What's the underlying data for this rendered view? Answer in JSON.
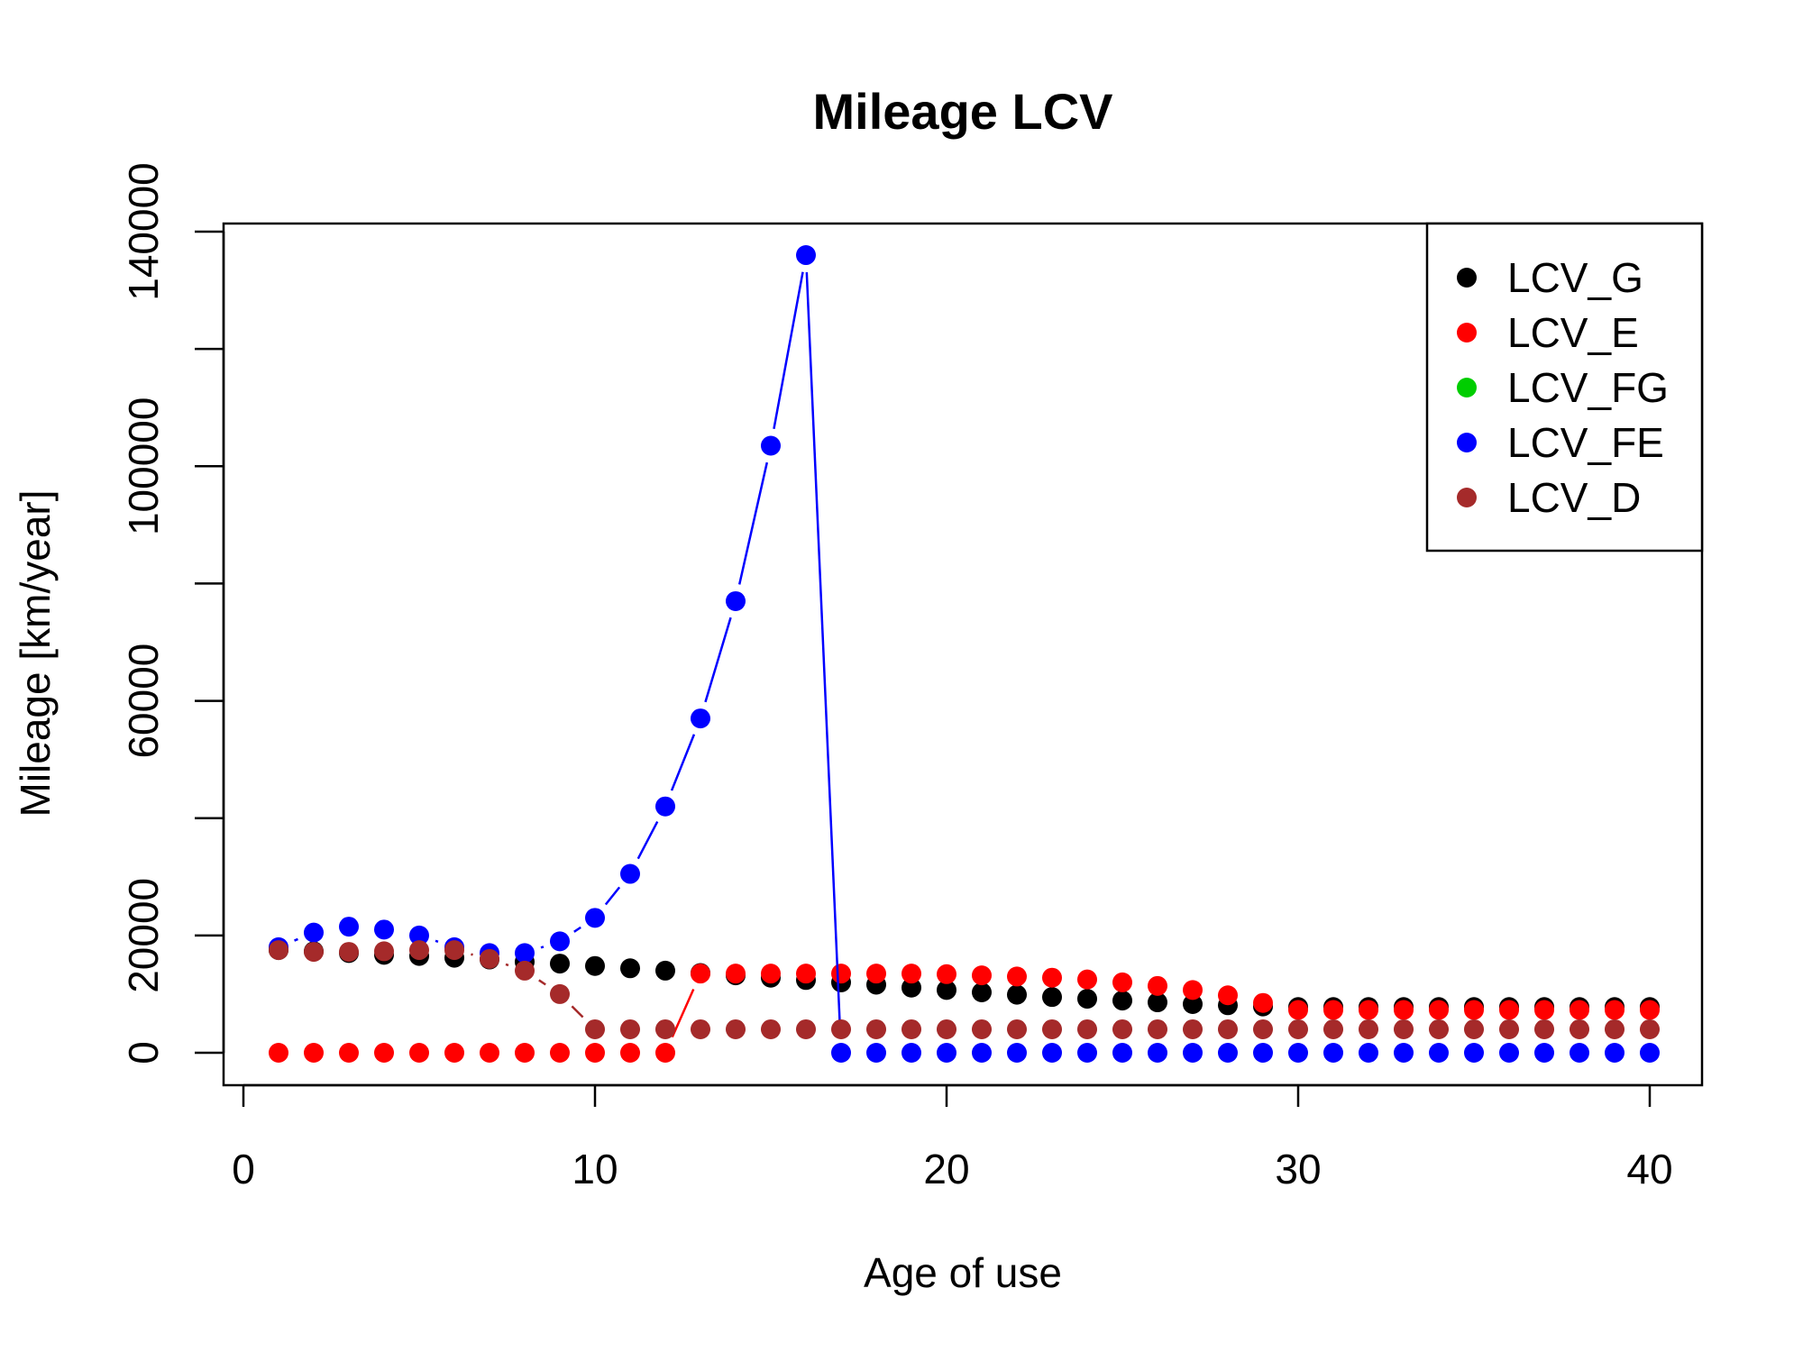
{
  "chart_data": {
    "type": "scatter",
    "title": "Mileage LCV",
    "xlabel": "Age of use",
    "ylabel": "Mileage [km/year]",
    "xlim": [
      0,
      40
    ],
    "ylim": [
      0,
      140000
    ],
    "x_ticks": [
      0,
      10,
      20,
      30,
      40
    ],
    "y_ticks": [
      0,
      20000,
      40000,
      60000,
      80000,
      100000,
      120000,
      140000
    ],
    "y_tick_labels": [
      "0",
      "20000",
      "",
      "60000",
      "",
      "100000",
      "",
      "140000"
    ],
    "grid": false,
    "legend_position": "top-right",
    "x": [
      1,
      2,
      3,
      4,
      5,
      6,
      7,
      8,
      9,
      10,
      11,
      12,
      13,
      14,
      15,
      16,
      17,
      18,
      19,
      20,
      21,
      22,
      23,
      24,
      25,
      26,
      27,
      28,
      29,
      30,
      31,
      32,
      33,
      34,
      35,
      36,
      37,
      38,
      39,
      40
    ],
    "series": [
      {
        "name": "LCV_G",
        "color": "#000000",
        "values": [
          17500,
          17300,
          17000,
          16700,
          16500,
          16200,
          15900,
          15500,
          15200,
          14800,
          14400,
          14000,
          13600,
          13200,
          12800,
          12400,
          12000,
          11600,
          11100,
          10700,
          10300,
          9900,
          9500,
          9200,
          8900,
          8600,
          8300,
          8100,
          7900,
          7800,
          7800,
          7800,
          7800,
          7800,
          7800,
          7800,
          7800,
          7800,
          7800,
          7800
        ]
      },
      {
        "name": "LCV_E",
        "color": "#ff0000",
        "values": [
          0,
          0,
          0,
          0,
          0,
          0,
          0,
          0,
          0,
          0,
          0,
          0,
          13500,
          13500,
          13500,
          13500,
          13500,
          13500,
          13500,
          13400,
          13200,
          13000,
          12800,
          12500,
          12000,
          11400,
          10700,
          9800,
          8500,
          7300,
          7300,
          7300,
          7300,
          7300,
          7300,
          7300,
          7300,
          7300,
          7300,
          7300
        ]
      },
      {
        "name": "LCV_FG",
        "color": "#00cd00",
        "values": []
      },
      {
        "name": "LCV_FE",
        "color": "#0000ff",
        "values": [
          18000,
          20500,
          21500,
          21000,
          20000,
          18000,
          17000,
          17000,
          19000,
          23000,
          30500,
          42000,
          57000,
          77000,
          103500,
          136000,
          0,
          0,
          0,
          0,
          0,
          0,
          0,
          0,
          0,
          0,
          0,
          0,
          0,
          0,
          0,
          0,
          0,
          0,
          0,
          0,
          0,
          0,
          0,
          0
        ]
      },
      {
        "name": "LCV_D",
        "color": "#a52a2a",
        "values": [
          17500,
          17200,
          17200,
          17300,
          17500,
          17500,
          16000,
          14000,
          10000,
          4000,
          4000,
          4000,
          4000,
          4000,
          4000,
          4000,
          4000,
          4000,
          4000,
          4000,
          4000,
          4000,
          4000,
          4000,
          4000,
          4000,
          4000,
          4000,
          4000,
          4000,
          4000,
          4000,
          4000,
          4000,
          4000,
          4000,
          4000,
          4000,
          4000,
          4000
        ]
      }
    ]
  }
}
